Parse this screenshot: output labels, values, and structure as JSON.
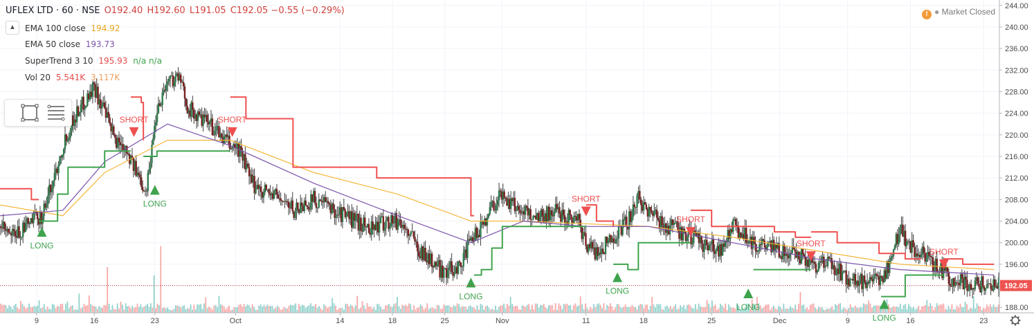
{
  "header": {
    "symbol": "UFLEX LTD · 60 · NSE",
    "o": "O192.40",
    "h": "H192.60",
    "l": "L191.05",
    "c": "C192.05",
    "change": "−0.55 (−0.29%)"
  },
  "indicators": [
    {
      "label": "EMA 100 close",
      "value": "194.92",
      "value2": "",
      "color": "#e8a51a"
    },
    {
      "label": "EMA 50 close",
      "value": "193.73",
      "value2": "",
      "color": "#7b52ab"
    },
    {
      "label": "SuperTrend 3 10",
      "value": "195.93",
      "value2": "n/a n/a",
      "color": "#e64a4a"
    },
    {
      "label": "Vol 20",
      "value": "5.541K",
      "value2": "3.117K",
      "color": "#e64a4a"
    }
  ],
  "market_status": "Market Closed",
  "last_price_label": "192.05",
  "colors": {
    "up": "#26a69a",
    "down": "#ef5350",
    "candle_body_up": "#2f7d4e",
    "candle_body_down": "#7a1f1f",
    "ema100": "#f6b73c",
    "ema50": "#7b52ab",
    "st_up": "#3fa34d",
    "st_down": "#f04f4f"
  },
  "chart_data": {
    "type": "candlestick",
    "symbol": "UFLEX LTD",
    "interval": "60",
    "exchange": "NSE",
    "ylim": [
      187,
      245
    ],
    "y_ticks": [
      188,
      192,
      196,
      200,
      204,
      208,
      212,
      216,
      220,
      224,
      228,
      232,
      236,
      240,
      244
    ],
    "x_ticks": [
      {
        "label": "9",
        "x": 3.5
      },
      {
        "label": "16",
        "x": 9.0
      },
      {
        "label": "23",
        "x": 14.8
      },
      {
        "label": "Oct",
        "x": 22.5
      },
      {
        "label": "14",
        "x": 32.5
      },
      {
        "label": "18",
        "x": 37.5
      },
      {
        "label": "25",
        "x": 42.5
      },
      {
        "label": "Nov",
        "x": 48.0
      },
      {
        "label": "11",
        "x": 56.0
      },
      {
        "label": "18",
        "x": 61.5
      },
      {
        "label": "25",
        "x": 68.0
      },
      {
        "label": "Dec",
        "x": 74.5
      },
      {
        "label": "9",
        "x": 81.0
      },
      {
        "label": "16",
        "x": 87.0
      },
      {
        "label": "23",
        "x": 94.0
      }
    ],
    "xlim": [
      0,
      95.5
    ],
    "price_path": [
      [
        0,
        203
      ],
      [
        1,
        201
      ],
      [
        2,
        202
      ],
      [
        3,
        204
      ],
      [
        4,
        205
      ],
      [
        5,
        211
      ],
      [
        6,
        218
      ],
      [
        7,
        223
      ],
      [
        8,
        226
      ],
      [
        9,
        229
      ],
      [
        10,
        224
      ],
      [
        11,
        219
      ],
      [
        12,
        218
      ],
      [
        13,
        213
      ],
      [
        14,
        210
      ],
      [
        15,
        225
      ],
      [
        16,
        230
      ],
      [
        17,
        231
      ],
      [
        18,
        225
      ],
      [
        19,
        223
      ],
      [
        20,
        222
      ],
      [
        21,
        220
      ],
      [
        22,
        218
      ],
      [
        23,
        217
      ],
      [
        24,
        211
      ],
      [
        25,
        210
      ],
      [
        26,
        209
      ],
      [
        27,
        208
      ],
      [
        28,
        206
      ],
      [
        29,
        207
      ],
      [
        30,
        208
      ],
      [
        31,
        207
      ],
      [
        32,
        206
      ],
      [
        33,
        205
      ],
      [
        34,
        204
      ],
      [
        35,
        203
      ],
      [
        36,
        203
      ],
      [
        37,
        204
      ],
      [
        38,
        204
      ],
      [
        39,
        202
      ],
      [
        40,
        199
      ],
      [
        41,
        197
      ],
      [
        42,
        195
      ],
      [
        43,
        195
      ],
      [
        44,
        196
      ],
      [
        45,
        200
      ],
      [
        46,
        203
      ],
      [
        47,
        207
      ],
      [
        48,
        209
      ],
      [
        49,
        207
      ],
      [
        50,
        206
      ],
      [
        51,
        205
      ],
      [
        52,
        205
      ],
      [
        53,
        206
      ],
      [
        54,
        205
      ],
      [
        55,
        205
      ],
      [
        56,
        200
      ],
      [
        57,
        198
      ],
      [
        58,
        200
      ],
      [
        59,
        202
      ],
      [
        60,
        204
      ],
      [
        61,
        208
      ],
      [
        62,
        206
      ],
      [
        63,
        204
      ],
      [
        64,
        203
      ],
      [
        65,
        202
      ],
      [
        66,
        201
      ],
      [
        67,
        200
      ],
      [
        68,
        199
      ],
      [
        69,
        199
      ],
      [
        70,
        203
      ],
      [
        71,
        202
      ],
      [
        72,
        200
      ],
      [
        73,
        199
      ],
      [
        74,
        199
      ],
      [
        75,
        198
      ],
      [
        76,
        198
      ],
      [
        77,
        197
      ],
      [
        78,
        196
      ],
      [
        79,
        196
      ],
      [
        80,
        195
      ],
      [
        81,
        193
      ],
      [
        82,
        193
      ],
      [
        83,
        192
      ],
      [
        84,
        193
      ],
      [
        85,
        196
      ],
      [
        86,
        203
      ],
      [
        87,
        199
      ],
      [
        88,
        198
      ],
      [
        89,
        196
      ],
      [
        90,
        195
      ],
      [
        91,
        193
      ],
      [
        92,
        193
      ],
      [
        93,
        192
      ],
      [
        94,
        192.5
      ],
      [
        95,
        192.05
      ]
    ],
    "ema100": [
      [
        0,
        207
      ],
      [
        6,
        205
      ],
      [
        10,
        213
      ],
      [
        16,
        219
      ],
      [
        22,
        219
      ],
      [
        30,
        213
      ],
      [
        38,
        209
      ],
      [
        45,
        204
      ],
      [
        50,
        204
      ],
      [
        56,
        203.5
      ],
      [
        62,
        203
      ],
      [
        70,
        201
      ],
      [
        78,
        198.5
      ],
      [
        86,
        196
      ],
      [
        95,
        195
      ]
    ],
    "ema50": [
      [
        0,
        205
      ],
      [
        6,
        206
      ],
      [
        10,
        215
      ],
      [
        16,
        222
      ],
      [
        22,
        218
      ],
      [
        30,
        211
      ],
      [
        38,
        205
      ],
      [
        45,
        200
      ],
      [
        50,
        204
      ],
      [
        56,
        203
      ],
      [
        62,
        203
      ],
      [
        70,
        200
      ],
      [
        78,
        197
      ],
      [
        86,
        195
      ],
      [
        95,
        194
      ]
    ],
    "supertrend": [
      {
        "dir": "down",
        "points": [
          [
            0,
            210
          ],
          [
            3,
            208
          ],
          [
            3.7,
            208
          ]
        ]
      },
      {
        "dir": "up",
        "points": [
          [
            3.7,
            204
          ],
          [
            4.5,
            204
          ],
          [
            5.5,
            209
          ],
          [
            6.5,
            214
          ],
          [
            8.5,
            214
          ],
          [
            10,
            217
          ],
          [
            12.5,
            217
          ]
        ]
      },
      {
        "dir": "down",
        "points": [
          [
            12.5,
            227
          ],
          [
            13.5,
            226
          ],
          [
            13.7,
            219
          ]
        ]
      },
      {
        "dir": "up",
        "points": [
          [
            13.7,
            216
          ],
          [
            14.5,
            216
          ],
          [
            15,
            217
          ],
          [
            22,
            217
          ]
        ]
      },
      {
        "dir": "down",
        "points": [
          [
            22,
            227
          ],
          [
            23.5,
            223
          ],
          [
            25.5,
            223
          ],
          [
            28,
            214
          ],
          [
            32,
            214
          ],
          [
            36,
            212
          ],
          [
            41,
            212
          ],
          [
            45,
            205
          ],
          [
            45.3,
            205
          ]
        ]
      },
      {
        "dir": "up",
        "points": [
          [
            45.3,
            194
          ],
          [
            46,
            195
          ],
          [
            47,
            199
          ],
          [
            48,
            203
          ],
          [
            56,
            203
          ]
        ]
      },
      {
        "dir": "down",
        "points": [
          [
            56,
            207
          ],
          [
            57,
            204
          ],
          [
            58,
            204
          ],
          [
            58.6,
            203
          ]
        ]
      },
      {
        "dir": "up",
        "points": [
          [
            58.6,
            196
          ],
          [
            60,
            195
          ],
          [
            61,
            200
          ],
          [
            66,
            200
          ]
        ]
      },
      {
        "dir": "down",
        "points": [
          [
            66,
            206
          ],
          [
            68,
            203
          ],
          [
            72,
            203
          ],
          [
            74,
            202
          ],
          [
            76,
            201
          ],
          [
            77.5,
            201
          ]
        ]
      },
      {
        "dir": "up",
        "points": [
          [
            72,
            195
          ],
          [
            77.5,
            195
          ]
        ]
      },
      {
        "dir": "down",
        "points": [
          [
            77.5,
            202
          ],
          [
            80,
            200
          ],
          [
            84,
            198
          ],
          [
            86.5,
            197
          ],
          [
            88,
            197
          ]
        ]
      },
      {
        "dir": "up",
        "points": [
          [
            84.2,
            190
          ],
          [
            86,
            190
          ],
          [
            86.5,
            194
          ],
          [
            90.2,
            194
          ]
        ]
      },
      {
        "dir": "down",
        "points": [
          [
            90.2,
            197
          ],
          [
            92,
            196
          ],
          [
            95,
            196
          ]
        ]
      }
    ],
    "signals": [
      {
        "type": "LONG",
        "x": 4.0,
        "y": 202.0
      },
      {
        "type": "SHORT",
        "x": 12.8,
        "y": 220.5
      },
      {
        "type": "LONG",
        "x": 14.8,
        "y": 209.8
      },
      {
        "type": "SHORT",
        "x": 22.2,
        "y": 220.5
      },
      {
        "type": "LONG",
        "x": 45.0,
        "y": 192.6
      },
      {
        "type": "SHORT",
        "x": 56.0,
        "y": 205.8
      },
      {
        "type": "LONG",
        "x": 59.0,
        "y": 193.6
      },
      {
        "type": "SHORT",
        "x": 66.0,
        "y": 202.0
      },
      {
        "type": "LONG",
        "x": 71.5,
        "y": 190.6
      },
      {
        "type": "SHORT",
        "x": 77.5,
        "y": 197.5
      },
      {
        "type": "LONG",
        "x": 84.5,
        "y": 188.6
      },
      {
        "type": "SHORT",
        "x": 90.2,
        "y": 196.0
      }
    ],
    "volume_spikes": [
      [
        10.2,
        0.55
      ],
      [
        15.3,
        0.8
      ],
      [
        14.7,
        0.45
      ]
    ]
  }
}
